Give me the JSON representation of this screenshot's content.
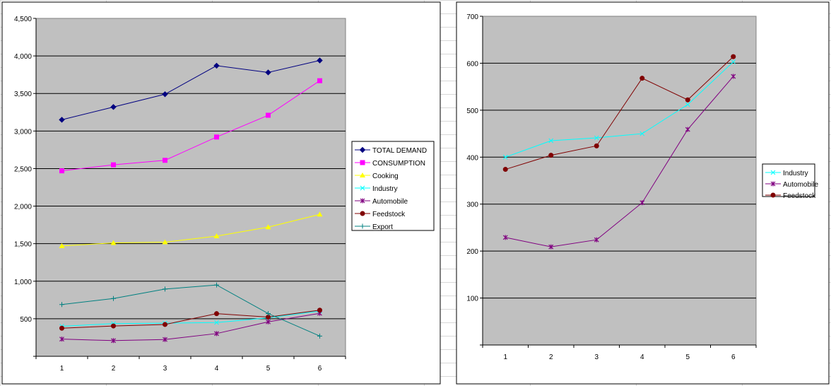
{
  "colors": {
    "plot_bg": "#c0c0c0",
    "frame": "#000000"
  },
  "chart_data": [
    {
      "type": "line",
      "title": "",
      "xlabel": "",
      "ylabel": "",
      "categories": [
        "1",
        "2",
        "3",
        "4",
        "5",
        "6"
      ],
      "ylim": [
        0,
        4500
      ],
      "yticks": [
        500,
        1000,
        1500,
        2000,
        2500,
        3000,
        3500,
        4000,
        4500
      ],
      "ytick_labels": [
        "500",
        "1,000",
        "1,500",
        "2,000",
        "2,500",
        "3,000",
        "3,500",
        "4,000",
        "4,500"
      ],
      "grid": true,
      "legend": "right",
      "series": [
        {
          "name": "TOTAL DEMAND",
          "color": "#000080",
          "marker": "diamond",
          "values": [
            3150,
            3320,
            3490,
            3870,
            3780,
            3940
          ]
        },
        {
          "name": "CONSUMPTION",
          "color": "#ff00ff",
          "marker": "square",
          "values": [
            2470,
            2550,
            2610,
            2920,
            3210,
            3670
          ]
        },
        {
          "name": "Cooking",
          "color": "#ffff00",
          "marker": "triangle",
          "values": [
            1470,
            1510,
            1520,
            1600,
            1720,
            1890
          ]
        },
        {
          "name": "Industry",
          "color": "#00ffff",
          "marker": "x",
          "values": [
            400,
            435,
            441,
            450,
            512,
            603
          ]
        },
        {
          "name": "Automobile",
          "color": "#800080",
          "marker": "star",
          "values": [
            229,
            209,
            224,
            303,
            459,
            572
          ]
        },
        {
          "name": "Feedstock",
          "color": "#800000",
          "marker": "circle",
          "values": [
            374,
            404,
            424,
            568,
            522,
            614
          ]
        },
        {
          "name": "Export",
          "color": "#008080",
          "marker": "plus",
          "values": [
            690,
            770,
            895,
            950,
            570,
            270
          ]
        }
      ]
    },
    {
      "type": "line",
      "title": "",
      "xlabel": "",
      "ylabel": "",
      "categories": [
        "1",
        "2",
        "3",
        "4",
        "5",
        "6"
      ],
      "ylim": [
        0,
        700
      ],
      "yticks": [
        100,
        200,
        300,
        400,
        500,
        600,
        700
      ],
      "ytick_labels": [
        "100",
        "200",
        "300",
        "400",
        "500",
        "600",
        "700"
      ],
      "grid": true,
      "legend": "right",
      "series": [
        {
          "name": "Industry",
          "color": "#00ffff",
          "marker": "x",
          "values": [
            400,
            435,
            441,
            450,
            512,
            603
          ]
        },
        {
          "name": "Automobile",
          "color": "#800080",
          "marker": "star",
          "values": [
            229,
            209,
            224,
            303,
            459,
            572
          ]
        },
        {
          "name": "Feedstock",
          "color": "#800000",
          "marker": "circle",
          "values": [
            374,
            404,
            424,
            568,
            522,
            614
          ]
        }
      ]
    }
  ]
}
